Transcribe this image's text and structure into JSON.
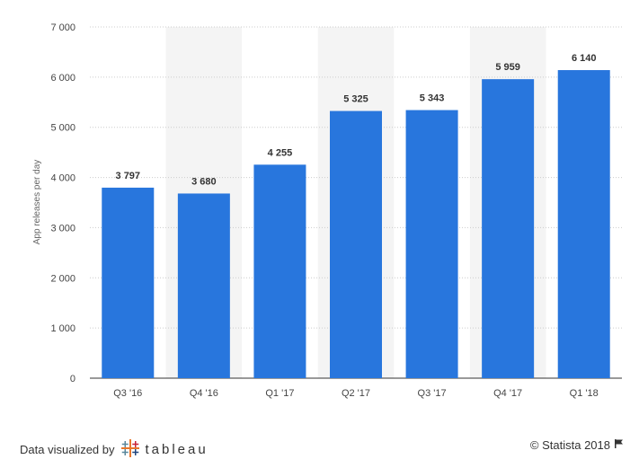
{
  "chart_data": {
    "type": "bar",
    "categories": [
      "Q3 '16",
      "Q4 '16",
      "Q1 '17",
      "Q2 '17",
      "Q3 '17",
      "Q4 '17",
      "Q1 '18"
    ],
    "values": [
      3797,
      3680,
      4255,
      5325,
      5343,
      5959,
      6140
    ],
    "value_labels": [
      "3 797",
      "3 680",
      "4 255",
      "5 325",
      "5 343",
      "5 959",
      "6 140"
    ],
    "ylabel": "App releases per day",
    "xlabel": "",
    "ylim": [
      0,
      7000
    ],
    "yticks": [
      0,
      1000,
      2000,
      3000,
      4000,
      5000,
      6000,
      7000
    ],
    "ytick_labels": [
      "0",
      "1 000",
      "2 000",
      "3 000",
      "4 000",
      "5 000",
      "6 000",
      "7 000"
    ],
    "grid": true,
    "bar_color": "#2876dd",
    "band_color": "#f4f4f4",
    "grid_color": "#cccccc"
  },
  "footer": {
    "credit_prefix": "Data visualized by",
    "credit_brand": "tableau",
    "copyright": "© Statista 2018"
  },
  "icons": {
    "brand": "tableau-logo-icon",
    "flag": "flag-icon"
  }
}
